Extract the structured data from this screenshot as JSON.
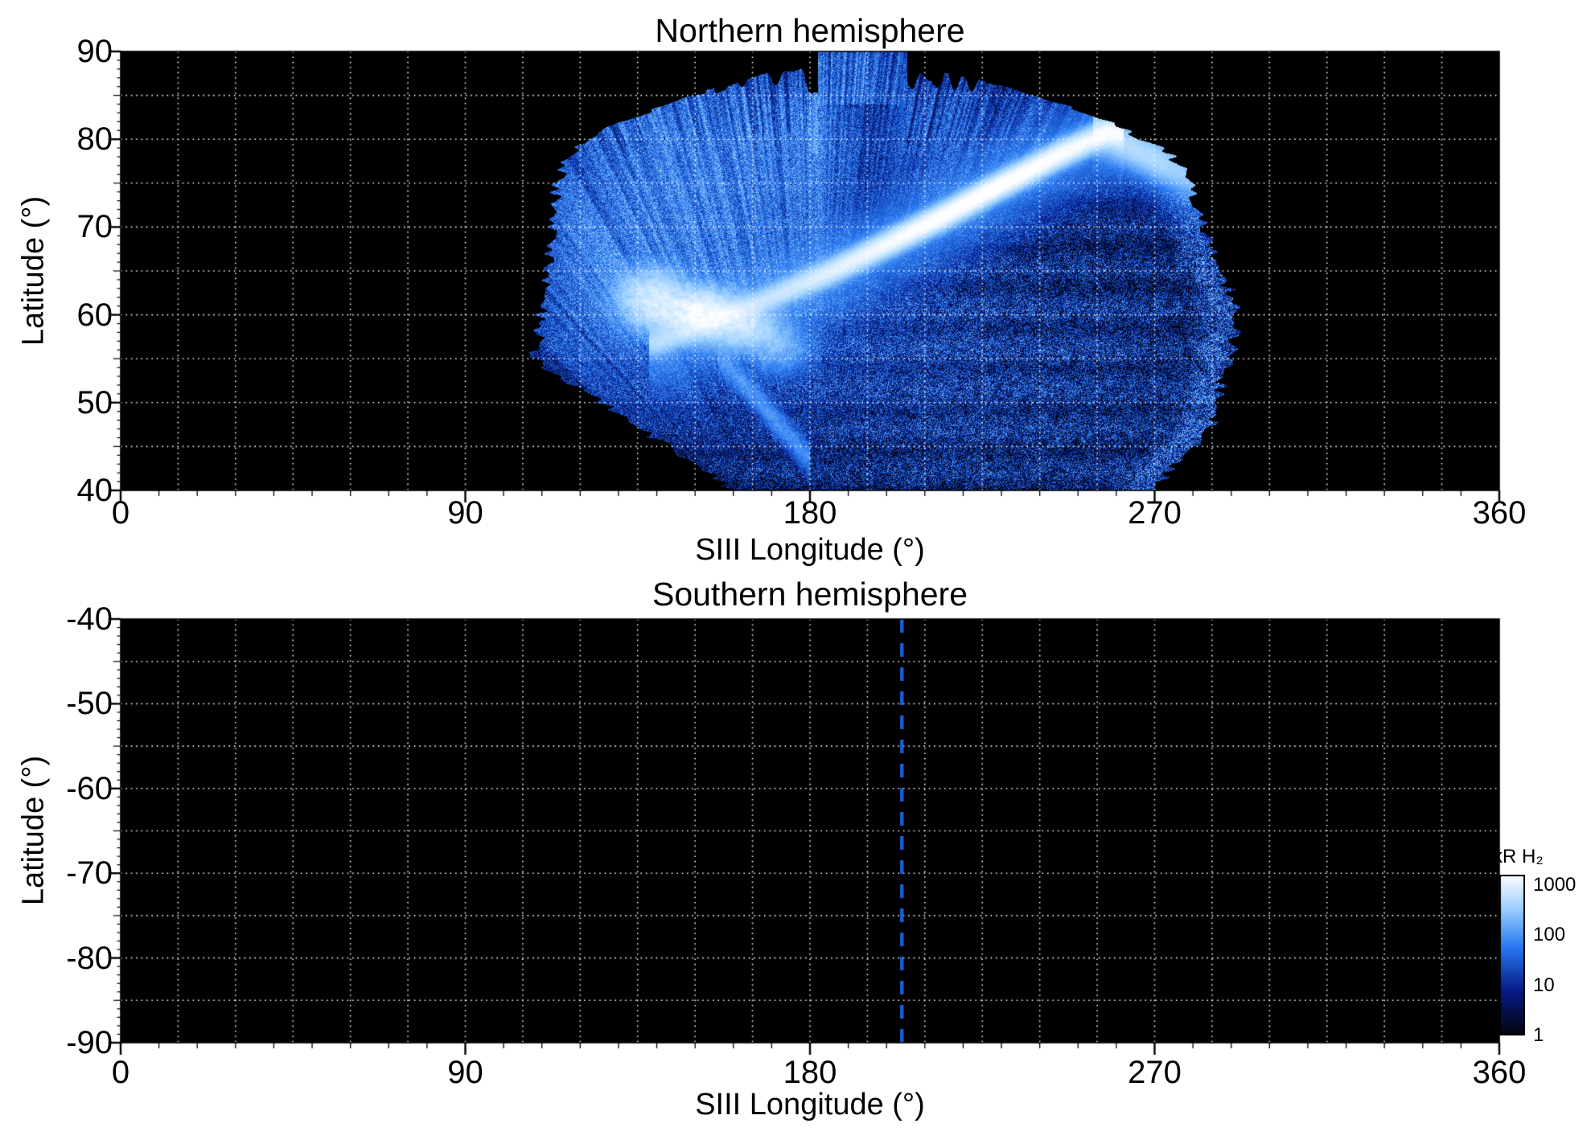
{
  "figure": {
    "background": "#ffffff",
    "marker_color": "#1b5ed2",
    "grid_color": "#ffffff",
    "plot_background": "#000000"
  },
  "chart_data": [
    {
      "type": "heatmap",
      "panel": "north",
      "title": "Northern hemisphere",
      "xlabel": "SIII Longitude (°)",
      "ylabel": "Latitude (°)",
      "xlim": [
        0,
        360
      ],
      "ylim": [
        40,
        90
      ],
      "xticks": [
        0,
        90,
        180,
        270,
        360
      ],
      "yticks": [
        90,
        80,
        70,
        60,
        50,
        40
      ],
      "grid": {
        "lon_step": 15,
        "lat_step": 5,
        "style": "dotted"
      },
      "marker_longitude": 204,
      "marker_lat_extent": [
        82,
        90
      ],
      "coverage": {
        "lon_range": [
          108,
          292
        ],
        "lat_range": [
          40,
          90
        ],
        "description": "fan-shaped auroral image coverage; black (no data) elsewhere"
      },
      "aurora": {
        "units": "kR H2",
        "main_arc_points": [
          [
            140,
            56.8
          ],
          [
            155,
            59.2
          ],
          [
            170,
            62
          ],
          [
            185,
            64.8
          ],
          [
            200,
            68
          ],
          [
            215,
            71.3
          ],
          [
            230,
            74.8
          ],
          [
            245,
            78.2
          ],
          [
            258,
            80.8
          ]
        ],
        "main_arc_peak_kR": 1700,
        "arc_extension_points": [
          [
            258,
            80.8
          ],
          [
            292,
            73.5
          ]
        ],
        "bright_spots": [
          {
            "lon": 151,
            "lat": 60.2,
            "peak_kR": 1100
          },
          {
            "lon": 139,
            "lat": 61.9,
            "peak_kR": 650
          },
          {
            "lon": 163,
            "lat": 58.5,
            "peak_kR": 520
          }
        ],
        "diffuse_regions": [
          {
            "lon": 150,
            "lat": 70,
            "peak_kR": 60,
            "note": "streaked fan emission upper-left"
          },
          {
            "lon": 182,
            "lat": 80,
            "peak_kR": 34,
            "note": "polar band with dark column near lon 197"
          },
          {
            "lon": 228,
            "lat": 54,
            "peak_kR": 6,
            "note": "faint speckled field lower-right"
          }
        ]
      }
    },
    {
      "type": "heatmap",
      "panel": "south",
      "title": "Southern hemisphere",
      "xlabel": "SIII Longitude (°)",
      "ylabel": "Latitude (°)",
      "xlim": [
        0,
        360
      ],
      "ylim": [
        -90,
        -40
      ],
      "xticks": [
        0,
        90,
        180,
        270,
        360
      ],
      "yticks": [
        -40,
        -50,
        -60,
        -70,
        -80,
        -90
      ],
      "grid": {
        "lon_step": 15,
        "lat_step": 5,
        "style": "dotted"
      },
      "marker_longitude": 204,
      "marker_lat_extent": [
        -90,
        -40
      ],
      "empty": true
    }
  ],
  "colorbar": {
    "label": "kR H₂",
    "scale": "log",
    "range": [
      1,
      1585
    ],
    "ticks": [
      1000,
      100,
      10,
      1
    ],
    "colors": [
      "#03030a",
      "#061c87",
      "#2878f0",
      "#96cdff",
      "#ffffff"
    ]
  }
}
